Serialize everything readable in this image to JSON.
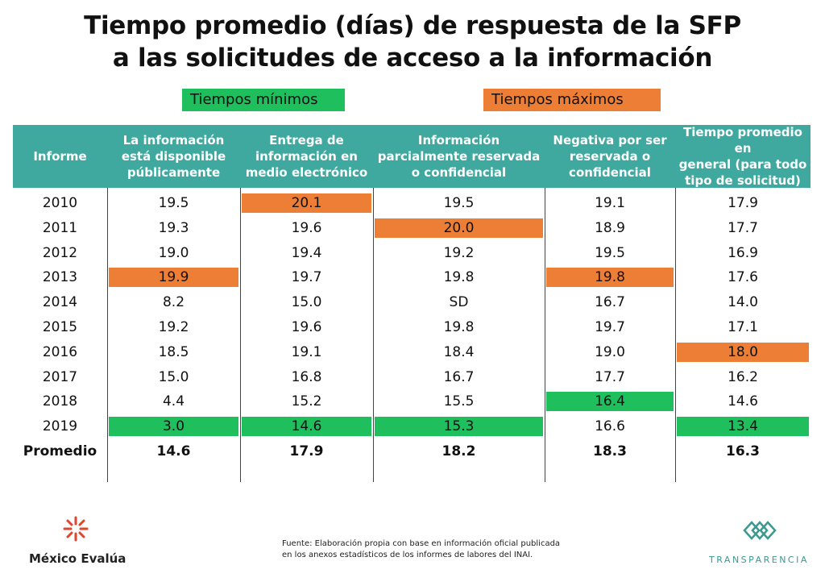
{
  "title_line1": "Tiempo promedio (días) de respuesta de la SFP",
  "title_line2": "a las solicitudes de acceso a la información",
  "legend": {
    "min_label": "Tiempos mínimos",
    "max_label": "Tiempos máximos",
    "min_color": "#1fbf5e",
    "max_color": "#ec7e36"
  },
  "header_color": "#3fa9a0",
  "chart_data": {
    "type": "table",
    "columns": [
      "Informe",
      "La información está disponible públicamente",
      "Entrega de información en medio electrónico",
      "Información parcialmente reservada o confidencial",
      "Negativa por ser reservada o confidencial",
      "Tiempo promedio en general (para todo tipo de solicitud)"
    ],
    "column_lines": [
      [
        "Informe"
      ],
      [
        "La información",
        "está disponible",
        "públicamente"
      ],
      [
        "Entrega de",
        "información en",
        "medio electrónico"
      ],
      [
        "Información",
        "parcialmente reservada",
        "o confidencial"
      ],
      [
        "Negativa por ser",
        "reservada o",
        "confidencial"
      ],
      [
        "Tiempo promedio en",
        "general (para todo",
        "tipo de solicitud)"
      ]
    ],
    "rows": [
      {
        "label": "2010",
        "values": [
          "19.5",
          "20.1",
          "19.5",
          "19.1",
          "17.9"
        ],
        "highlight": [
          "",
          "max",
          "",
          "",
          ""
        ]
      },
      {
        "label": "2011",
        "values": [
          "19.3",
          "19.6",
          "20.0",
          "18.9",
          "17.7"
        ],
        "highlight": [
          "",
          "",
          "max",
          "",
          ""
        ]
      },
      {
        "label": "2012",
        "values": [
          "19.0",
          "19.4",
          "19.2",
          "19.5",
          "16.9"
        ],
        "highlight": [
          "",
          "",
          "",
          "",
          ""
        ]
      },
      {
        "label": "2013",
        "values": [
          "19.9",
          "19.7",
          "19.8",
          "19.8",
          "17.6"
        ],
        "highlight": [
          "max",
          "",
          "",
          "max",
          ""
        ]
      },
      {
        "label": "2014",
        "values": [
          "8.2",
          "15.0",
          "SD",
          "16.7",
          "14.0"
        ],
        "highlight": [
          "",
          "",
          "",
          "",
          ""
        ]
      },
      {
        "label": "2015",
        "values": [
          "19.2",
          "19.6",
          "19.8",
          "19.7",
          "17.1"
        ],
        "highlight": [
          "",
          "",
          "",
          "",
          ""
        ]
      },
      {
        "label": "2016",
        "values": [
          "18.5",
          "19.1",
          "18.4",
          "19.0",
          "18.0"
        ],
        "highlight": [
          "",
          "",
          "",
          "",
          "max"
        ]
      },
      {
        "label": "2017",
        "values": [
          "15.0",
          "16.8",
          "16.7",
          "17.7",
          "16.2"
        ],
        "highlight": [
          "",
          "",
          "",
          "",
          ""
        ]
      },
      {
        "label": "2018",
        "values": [
          "4.4",
          "15.2",
          "15.5",
          "16.4",
          "14.6"
        ],
        "highlight": [
          "",
          "",
          "",
          "min",
          ""
        ]
      },
      {
        "label": "2019",
        "values": [
          "3.0",
          "14.6",
          "15.3",
          "16.6",
          "13.4"
        ],
        "highlight": [
          "min",
          "min",
          "min",
          "",
          "min"
        ]
      }
    ],
    "average": {
      "label": "Promedio",
      "values": [
        "14.6",
        "17.9",
        "18.2",
        "18.3",
        "16.3"
      ]
    }
  },
  "footer": {
    "logo_left": "México Evalúa",
    "source_line1": "Fuente: Elaboración propia con base en información oficial publicada",
    "source_line2": "en los anexos estadísticos de los informes de labores del INAI.",
    "logo_right": "TRANSPARENCIA"
  }
}
